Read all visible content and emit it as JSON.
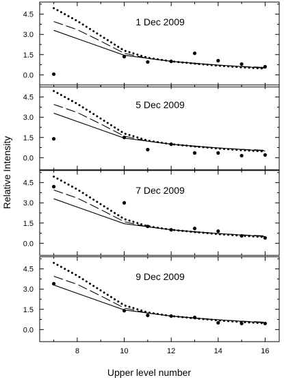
{
  "figure": {
    "ylabel": "Relative Intensity",
    "xlabel": "Upper level number"
  },
  "chart_data": [
    {
      "type": "line",
      "title": "1 Dec 2009",
      "xlim": [
        6.4,
        16.6
      ],
      "ylim": [
        -0.9,
        5.4
      ],
      "xticks": [
        8,
        10,
        12,
        14,
        16
      ],
      "yticks": [
        0.0,
        1.5,
        3.0,
        4.5
      ],
      "series": [
        {
          "style": "solid",
          "x": [
            7,
            10,
            12,
            14,
            16
          ],
          "y": [
            3.3,
            1.45,
            1.0,
            0.72,
            0.5
          ]
        },
        {
          "style": "dashed",
          "x": [
            7,
            8,
            9,
            10,
            11,
            12,
            13,
            14,
            15,
            16
          ],
          "y": [
            3.95,
            3.35,
            2.5,
            1.6,
            1.22,
            1.0,
            0.84,
            0.72,
            0.62,
            0.55
          ]
        },
        {
          "style": "dotted",
          "x": [
            7,
            8,
            9,
            10,
            11,
            12,
            13,
            14,
            15,
            16
          ],
          "y": [
            4.95,
            4.0,
            2.9,
            1.8,
            1.27,
            1.0,
            0.83,
            0.68,
            0.56,
            0.46
          ]
        },
        {
          "style": "points",
          "x": [
            7,
            10,
            11,
            12,
            13,
            14,
            15,
            16
          ],
          "y": [
            0.05,
            1.35,
            0.95,
            1.0,
            1.6,
            1.05,
            0.8,
            0.6
          ]
        }
      ]
    },
    {
      "type": "line",
      "title": "5 Dec 2009",
      "xlim": [
        6.4,
        16.6
      ],
      "ylim": [
        -0.9,
        5.4
      ],
      "xticks": [
        8,
        10,
        12,
        14,
        16
      ],
      "yticks": [
        0.0,
        1.5,
        3.0,
        4.5
      ],
      "series": [
        {
          "style": "solid",
          "x": [
            7,
            10,
            12,
            14,
            16
          ],
          "y": [
            3.3,
            1.45,
            1.0,
            0.72,
            0.5
          ]
        },
        {
          "style": "dashed",
          "x": [
            7,
            8,
            9,
            10,
            11,
            12,
            13,
            14,
            15,
            16
          ],
          "y": [
            3.95,
            3.35,
            2.5,
            1.6,
            1.22,
            1.0,
            0.84,
            0.72,
            0.62,
            0.55
          ]
        },
        {
          "style": "dotted",
          "x": [
            7,
            8,
            9,
            10,
            11,
            12,
            13,
            14,
            15,
            16
          ],
          "y": [
            4.95,
            4.0,
            2.9,
            1.8,
            1.27,
            1.0,
            0.83,
            0.68,
            0.56,
            0.46
          ]
        },
        {
          "style": "points",
          "x": [
            7,
            10,
            11,
            12,
            13,
            14,
            15,
            16
          ],
          "y": [
            1.4,
            1.5,
            0.6,
            1.0,
            0.35,
            0.35,
            0.15,
            0.2
          ]
        }
      ]
    },
    {
      "type": "line",
      "title": "7 Dec 2009",
      "xlim": [
        6.4,
        16.6
      ],
      "ylim": [
        -0.9,
        5.4
      ],
      "xticks": [
        8,
        10,
        12,
        14,
        16
      ],
      "yticks": [
        0.0,
        1.5,
        3.0,
        4.5
      ],
      "series": [
        {
          "style": "solid",
          "x": [
            7,
            10,
            12,
            14,
            16
          ],
          "y": [
            3.3,
            1.45,
            1.0,
            0.72,
            0.5
          ]
        },
        {
          "style": "dashed",
          "x": [
            7,
            8,
            9,
            10,
            11,
            12,
            13,
            14,
            15,
            16
          ],
          "y": [
            3.95,
            3.35,
            2.5,
            1.6,
            1.22,
            1.0,
            0.84,
            0.72,
            0.62,
            0.55
          ]
        },
        {
          "style": "dotted",
          "x": [
            7,
            8,
            9,
            10,
            11,
            12,
            13,
            14,
            15,
            16
          ],
          "y": [
            4.95,
            4.0,
            2.9,
            1.8,
            1.27,
            1.0,
            0.83,
            0.68,
            0.56,
            0.46
          ]
        },
        {
          "style": "points",
          "x": [
            7,
            10,
            11,
            12,
            13,
            14,
            15,
            16
          ],
          "y": [
            4.2,
            3.0,
            1.25,
            1.0,
            1.1,
            0.9,
            0.55,
            0.4
          ]
        }
      ]
    },
    {
      "type": "line",
      "title": "9 Dec 2009",
      "xlim": [
        6.4,
        16.6
      ],
      "ylim": [
        -0.9,
        5.4
      ],
      "xticks": [
        8,
        10,
        12,
        14,
        16
      ],
      "yticks": [
        0.0,
        1.5,
        3.0,
        4.5
      ],
      "series": [
        {
          "style": "solid",
          "x": [
            7,
            10,
            12,
            14,
            16
          ],
          "y": [
            3.3,
            1.45,
            1.0,
            0.72,
            0.5
          ]
        },
        {
          "style": "dashed",
          "x": [
            7,
            8,
            9,
            10,
            11,
            12,
            13,
            14,
            15,
            16
          ],
          "y": [
            3.95,
            3.35,
            2.5,
            1.6,
            1.22,
            1.0,
            0.84,
            0.72,
            0.62,
            0.55
          ]
        },
        {
          "style": "dotted",
          "x": [
            7,
            8,
            9,
            10,
            11,
            12,
            13,
            14,
            15,
            16
          ],
          "y": [
            4.95,
            4.0,
            2.9,
            1.8,
            1.27,
            1.0,
            0.83,
            0.68,
            0.56,
            0.46
          ]
        },
        {
          "style": "points",
          "x": [
            7,
            10,
            11,
            12,
            13,
            14,
            15,
            16
          ],
          "y": [
            3.4,
            1.4,
            1.05,
            1.0,
            0.9,
            0.5,
            0.45,
            0.45
          ]
        }
      ]
    }
  ]
}
